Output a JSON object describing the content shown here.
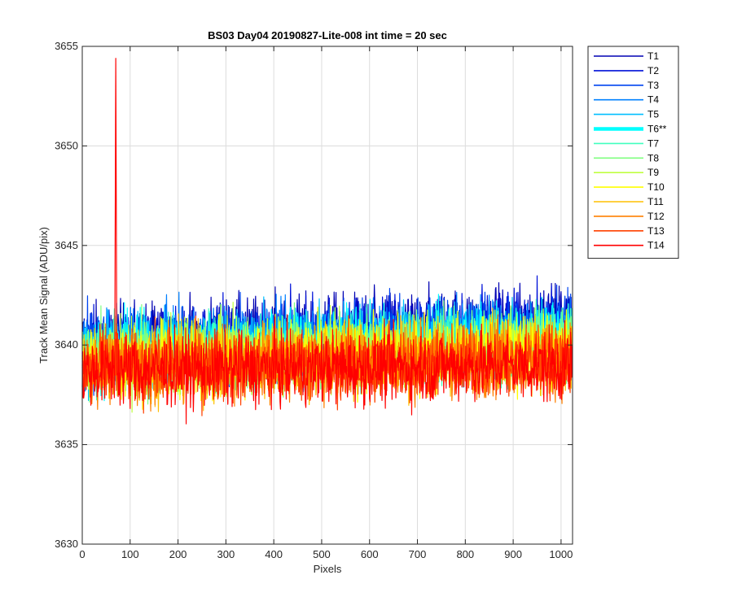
{
  "chart_data": {
    "type": "line",
    "title": "BS03 Day04 20190827-Lite-008 int time = 20 sec",
    "xlabel": "Pixels",
    "ylabel": "Track Mean Signal (ADU/pix)",
    "xlim": [
      0,
      1024
    ],
    "ylim": [
      3630,
      3655
    ],
    "xticks": [
      0,
      100,
      200,
      300,
      400,
      500,
      600,
      700,
      800,
      900,
      1000
    ],
    "yticks": [
      3630,
      3635,
      3640,
      3645,
      3650,
      3655
    ],
    "grid": true,
    "legend_position": "outside-top-right",
    "n_points": 1024,
    "series": [
      {
        "name": "T1",
        "color": "#0000b3",
        "base_start": 3640.2,
        "base_end": 3641.2,
        "noise": 1.3,
        "highlight": false
      },
      {
        "name": "T2",
        "color": "#0011d9",
        "base_start": 3640.0,
        "base_end": 3641.0,
        "noise": 1.3,
        "highlight": false
      },
      {
        "name": "T3",
        "color": "#0044f0",
        "base_start": 3639.9,
        "base_end": 3640.8,
        "noise": 1.3,
        "highlight": false
      },
      {
        "name": "T4",
        "color": "#0080ff",
        "base_start": 3639.8,
        "base_end": 3640.6,
        "noise": 1.3,
        "highlight": false
      },
      {
        "name": "T5",
        "color": "#00bfff",
        "base_start": 3639.7,
        "base_end": 3640.4,
        "noise": 1.3,
        "highlight": false
      },
      {
        "name": "T6**",
        "color": "#00ffff",
        "base_start": 3639.6,
        "base_end": 3640.3,
        "noise": 1.3,
        "highlight": true
      },
      {
        "name": "T7",
        "color": "#40ffbf",
        "base_start": 3639.5,
        "base_end": 3640.1,
        "noise": 1.3,
        "highlight": false
      },
      {
        "name": "T8",
        "color": "#80ff80",
        "base_start": 3639.4,
        "base_end": 3640.0,
        "noise": 1.3,
        "highlight": false
      },
      {
        "name": "T9",
        "color": "#bfff40",
        "base_start": 3639.3,
        "base_end": 3639.8,
        "noise": 1.3,
        "highlight": false
      },
      {
        "name": "T10",
        "color": "#ffff00",
        "base_start": 3639.2,
        "base_end": 3639.7,
        "noise": 1.3,
        "highlight": false
      },
      {
        "name": "T11",
        "color": "#ffbf00",
        "base_start": 3639.0,
        "base_end": 3639.5,
        "noise": 1.3,
        "highlight": false
      },
      {
        "name": "T12",
        "color": "#ff8000",
        "base_start": 3638.9,
        "base_end": 3639.3,
        "noise": 1.3,
        "highlight": false
      },
      {
        "name": "T13",
        "color": "#ff4000",
        "base_start": 3638.8,
        "base_end": 3639.2,
        "noise": 1.3,
        "highlight": false
      },
      {
        "name": "T14",
        "color": "#ff0000",
        "base_start": 3638.7,
        "base_end": 3639.0,
        "noise": 1.3,
        "highlight": false,
        "spike": {
          "x": 70,
          "y": 3654.4
        }
      }
    ]
  }
}
